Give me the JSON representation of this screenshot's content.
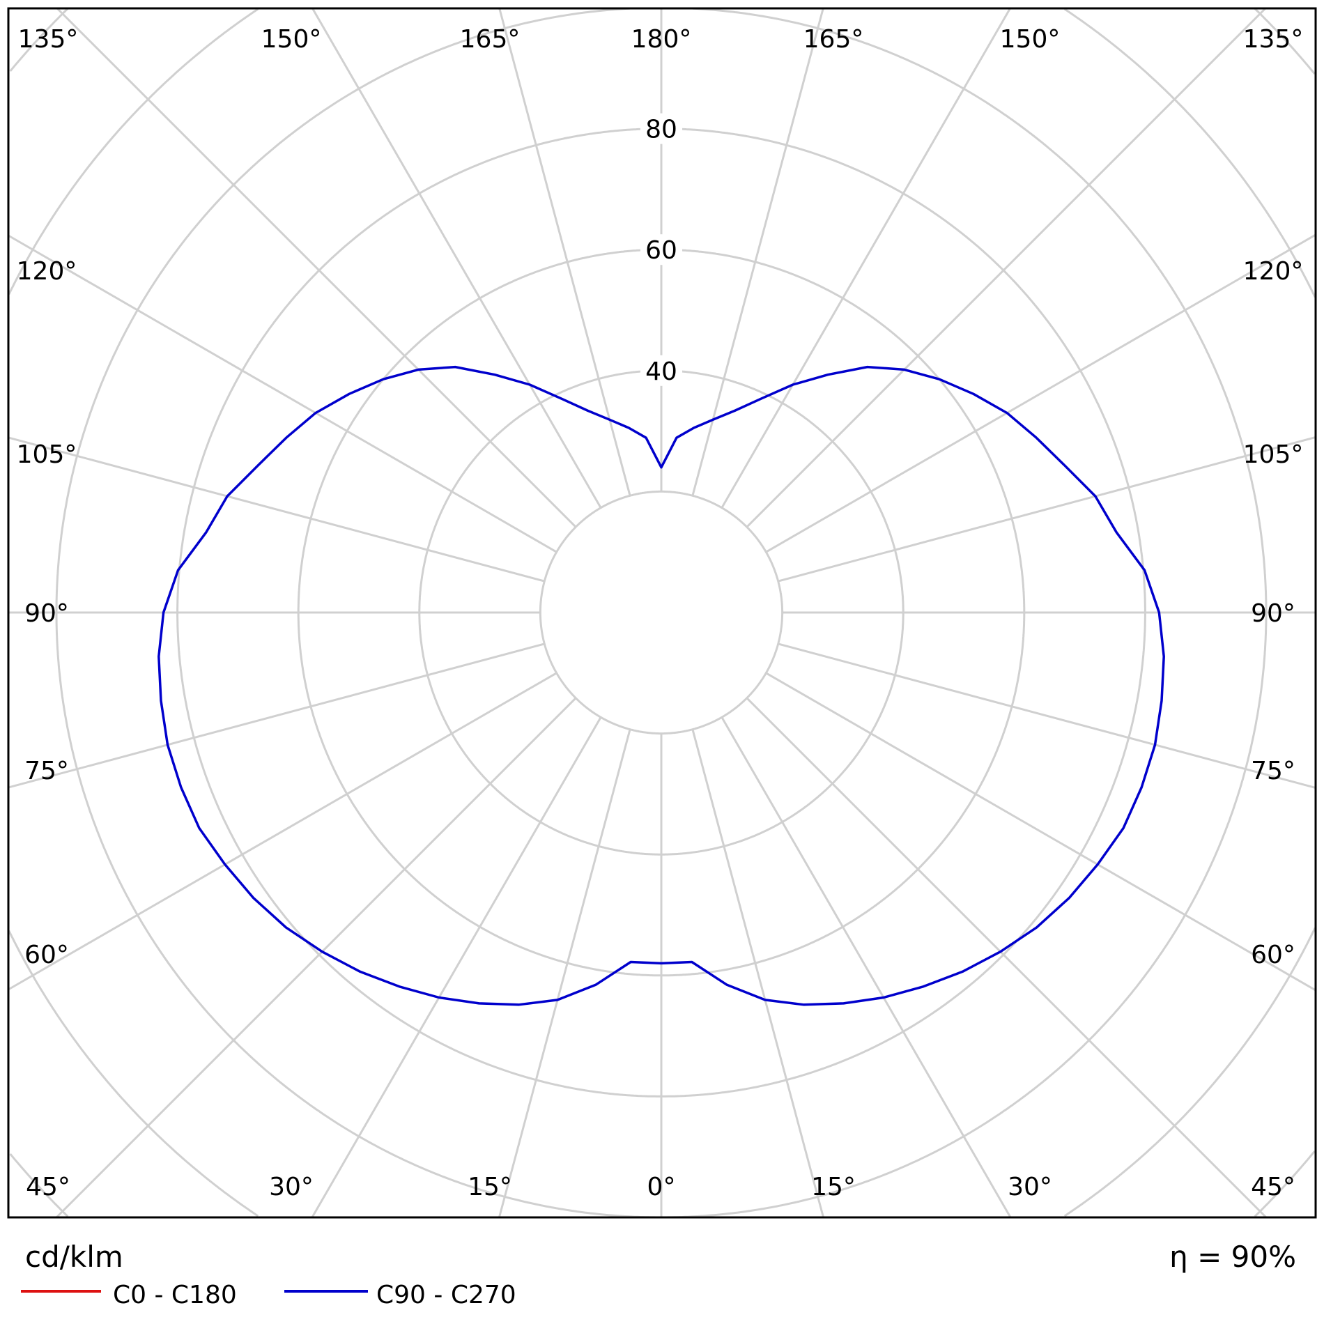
{
  "chart_data": {
    "type": "polar-line",
    "unit_label": "cd/klm",
    "efficiency_label": "η = 90%",
    "radial_ticks": [
      20,
      40,
      60,
      80,
      100,
      120,
      140
    ],
    "radial_tick_labels": [
      "40",
      "60",
      "80"
    ],
    "radial_tick_label_values": [
      40,
      60,
      80
    ],
    "angle_labels": {
      "top": [
        "135°",
        "150°",
        "165°",
        "180°",
        "165°",
        "150°",
        "135°"
      ],
      "left": [
        "120°",
        "105°",
        "90°",
        "75°",
        "60°"
      ],
      "right": [
        "120°",
        "105°",
        "90°",
        "75°",
        "60°"
      ],
      "bottom": [
        "45°",
        "30°",
        "15°",
        "0°",
        "15°",
        "30°",
        "45°"
      ]
    },
    "grid": true,
    "legend_placement": "bottom-left",
    "series": [
      {
        "name": "C0 - C180",
        "color": "#dd1111",
        "gamma": [],
        "values": []
      },
      {
        "name": "C90 - C270",
        "color": "#0000cc",
        "gamma": [
          0,
          5,
          10,
          15,
          20,
          25,
          30,
          35,
          40,
          45,
          50,
          55,
          60,
          65,
          70,
          75,
          80,
          85,
          90,
          95,
          100,
          105,
          110,
          115,
          120,
          125,
          130,
          135,
          140,
          145,
          150,
          155,
          160,
          165,
          170,
          175,
          180
        ],
        "values": [
          58,
          58,
          62.5,
          66.3,
          69,
          71.3,
          73.5,
          75.5,
          77.5,
          79.3,
          81,
          82.3,
          83.3,
          84.3,
          84.5,
          84.5,
          84,
          83.4,
          82.3,
          80.2,
          76.4,
          74.3,
          71,
          68.4,
          66,
          63,
          60,
          56.8,
          53,
          48,
          43.5,
          39,
          35.5,
          33,
          31,
          29,
          24
        ]
      }
    ]
  }
}
